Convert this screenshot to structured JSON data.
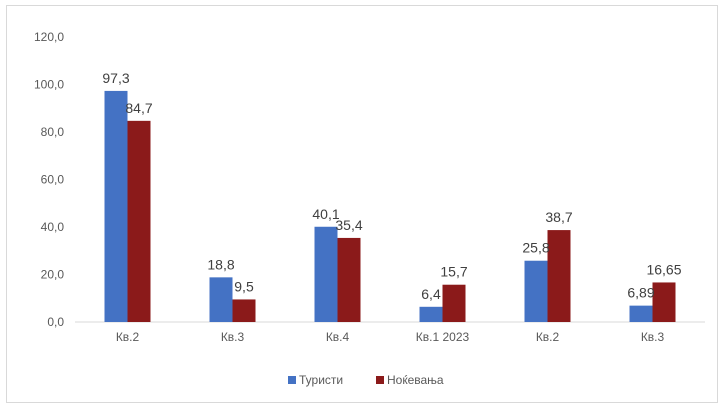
{
  "chart_data": {
    "type": "bar",
    "categories": [
      "Кв.2",
      "Кв.3",
      "Кв.4",
      "Кв.1 2023",
      "Кв.2",
      "Кв.3"
    ],
    "series": [
      {
        "name": "Туристи",
        "color": "#4472c4",
        "values": [
          97.3,
          18.8,
          40.1,
          6.4,
          25.8,
          6.89
        ],
        "labels": [
          "97,3",
          "18,8",
          "40,1",
          "6,4",
          "25,8",
          "6,89"
        ]
      },
      {
        "name": "Ноќевања",
        "color": "#8b1a1a",
        "values": [
          84.7,
          9.5,
          35.4,
          15.7,
          38.7,
          16.65
        ],
        "labels": [
          "84,7",
          "9,5",
          "35,4",
          "15,7",
          "38,7",
          "16,65"
        ]
      }
    ],
    "y_ticks": [
      "0,0",
      "20,0",
      "40,0",
      "60,0",
      "80,0",
      "100,0",
      "120,0"
    ],
    "ylim": [
      0,
      120
    ],
    "grid": false,
    "legend_position": "bottom"
  }
}
